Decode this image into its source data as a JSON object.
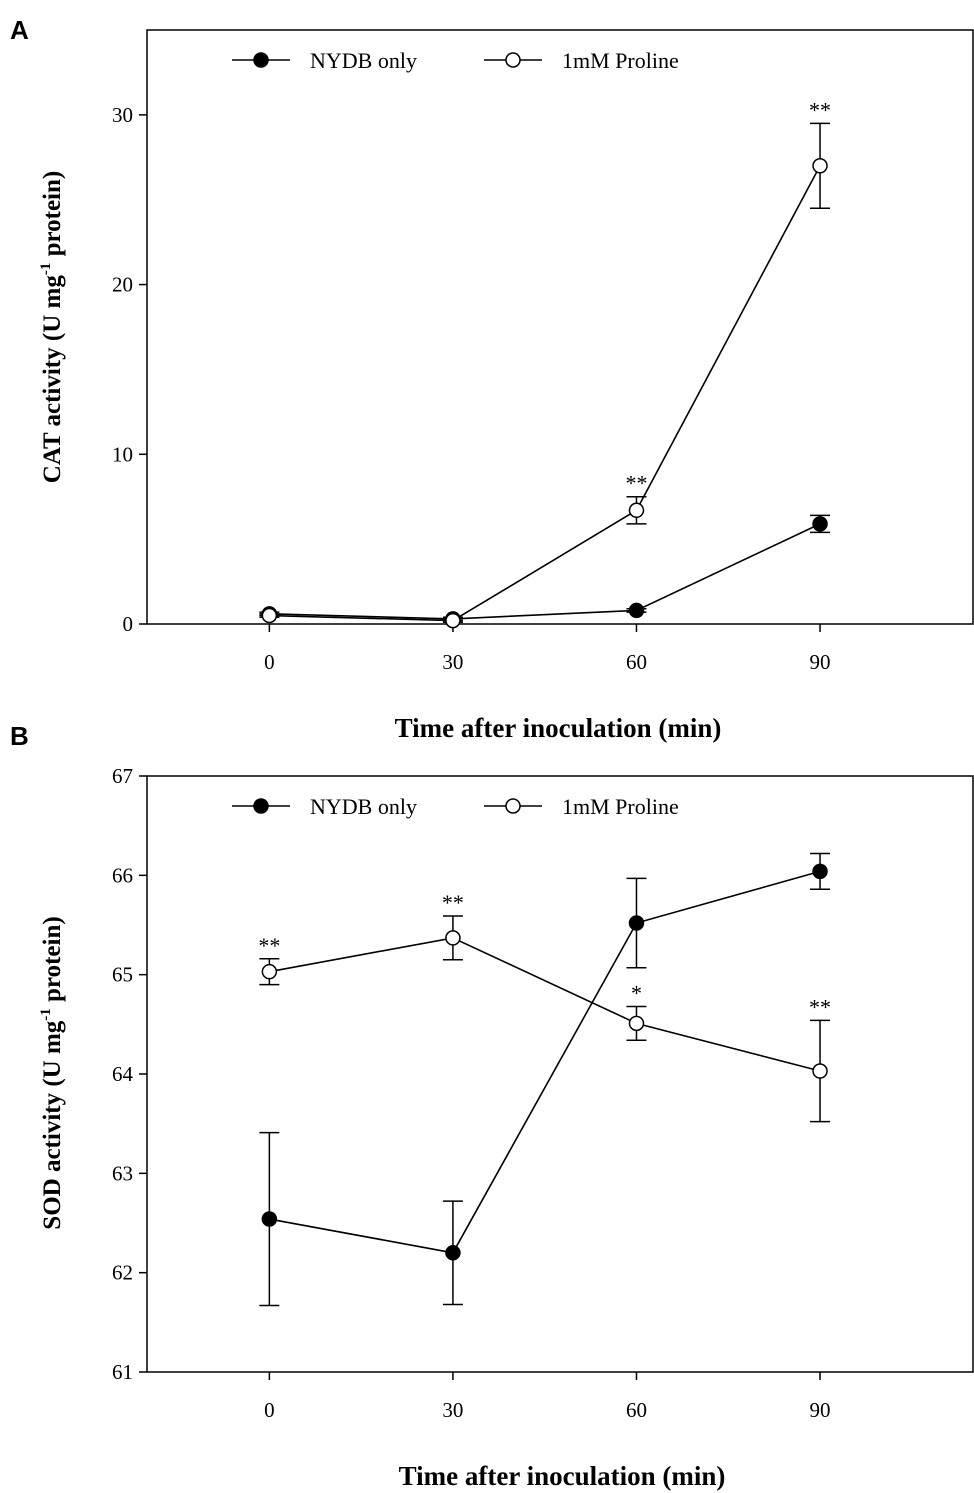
{
  "chart_data": [
    {
      "type": "line",
      "panel_label": "A",
      "xlabel": "Time after inoculation (min)",
      "ylabel_main": "CAT activity (U mg",
      "ylabel_sup": "-1",
      "ylabel_tail": " protein)",
      "xlim": [
        -20,
        115
      ],
      "ylim": [
        0,
        35
      ],
      "x": [
        0,
        30,
        60,
        90
      ],
      "x_tick_labels": [
        "0",
        "30",
        "60",
        "90"
      ],
      "y_ticks": [
        0,
        10,
        20,
        30
      ],
      "y_tick_labels": [
        "0",
        "10",
        "20",
        "30"
      ],
      "legend": {
        "position": "top-left",
        "entries": [
          "NYDB only",
          "1mM Proline"
        ]
      },
      "series": [
        {
          "name": "NYDB only",
          "marker": "filled-circle",
          "values": [
            0.6,
            0.3,
            0.8,
            5.9
          ],
          "errors": [
            0.1,
            0.1,
            0.1,
            0.5
          ],
          "annotations": [
            "",
            "",
            "",
            ""
          ]
        },
        {
          "name": "1mM Proline",
          "marker": "open-circle",
          "values": [
            0.5,
            0.2,
            6.7,
            27.0
          ],
          "errors": [
            0.1,
            0.1,
            0.8,
            2.5
          ],
          "annotations": [
            "",
            "",
            "**",
            "**"
          ]
        }
      ]
    },
    {
      "type": "line",
      "panel_label": "B",
      "xlabel": "Time after inoculation (min)",
      "ylabel_main": "SOD activity (U mg",
      "ylabel_sup": "-1",
      "ylabel_tail": " protein)",
      "xlim": [
        -20,
        115
      ],
      "ylim": [
        61,
        67
      ],
      "x": [
        0,
        30,
        60,
        90
      ],
      "x_tick_labels": [
        "0",
        "30",
        "60",
        "90"
      ],
      "y_ticks": [
        61,
        62,
        63,
        64,
        65,
        66,
        67
      ],
      "y_tick_labels": [
        "61",
        "62",
        "63",
        "64",
        "65",
        "66",
        "67"
      ],
      "legend": {
        "position": "top-left",
        "entries": [
          "NYDB only",
          "1mM Proline"
        ]
      },
      "series": [
        {
          "name": "NYDB only",
          "marker": "filled-circle",
          "values": [
            62.54,
            62.2,
            65.52,
            66.04
          ],
          "errors": [
            0.87,
            0.52,
            0.45,
            0.18
          ],
          "annotations": [
            "",
            "",
            "",
            ""
          ]
        },
        {
          "name": "1mM Proline",
          "marker": "open-circle",
          "values": [
            65.03,
            65.37,
            64.51,
            64.03
          ],
          "errors": [
            0.13,
            0.22,
            0.17,
            0.51
          ],
          "annotations": [
            "**",
            "**",
            "*",
            "**"
          ]
        }
      ]
    }
  ]
}
